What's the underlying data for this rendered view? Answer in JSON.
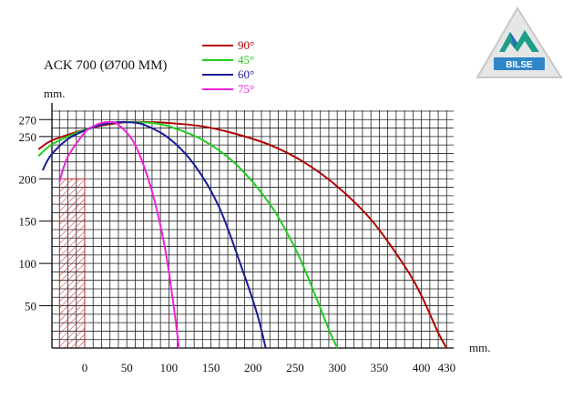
{
  "chart_data": {
    "type": "line",
    "title": "ACK 700 (Ø700 MM)",
    "ylabel": "mm.",
    "xlabel": "mm.",
    "x_ticks": [
      0,
      50,
      100,
      150,
      200,
      250,
      300,
      350,
      400,
      430
    ],
    "y_ticks": [
      50,
      100,
      150,
      200,
      250,
      270
    ],
    "xlim": [
      -40,
      440
    ],
    "ylim": [
      0,
      280
    ],
    "grid": true,
    "legend_position": "top-center",
    "obstacle": {
      "x": [
        -30,
        0
      ],
      "y": [
        0,
        200
      ]
    },
    "series": [
      {
        "name": "90°",
        "color": "#b00000",
        "x": [
          -55,
          -40,
          -20,
          0,
          20,
          50,
          80,
          100,
          140,
          180,
          220,
          260,
          300,
          340,
          380,
          400,
          420,
          430
        ],
        "y": [
          235,
          245,
          252,
          258,
          263,
          267,
          267,
          266,
          262,
          253,
          240,
          220,
          191,
          152,
          97,
          62,
          18,
          0
        ]
      },
      {
        "name": "45°",
        "color": "#22cc22",
        "x": [
          -55,
          -40,
          -20,
          0,
          20,
          40,
          60,
          80,
          100,
          140,
          180,
          220,
          250,
          270,
          290,
          300
        ],
        "y": [
          227,
          240,
          250,
          258,
          264,
          267,
          267,
          266,
          262,
          246,
          217,
          170,
          118,
          72,
          22,
          0
        ]
      },
      {
        "name": "60°",
        "color": "#1a1a9a",
        "x": [
          -50,
          -40,
          -20,
          0,
          20,
          40,
          50,
          70,
          100,
          130,
          160,
          190,
          205,
          215
        ],
        "y": [
          210,
          228,
          247,
          257,
          264,
          267,
          267,
          264,
          248,
          217,
          166,
          85,
          40,
          0
        ]
      },
      {
        "name": "75°",
        "color": "#ee22dd",
        "x": [
          -30,
          -20,
          0,
          10,
          20,
          30,
          40,
          60,
          80,
          95,
          105,
          112
        ],
        "y": [
          197,
          226,
          255,
          262,
          266,
          267,
          264,
          240,
          185,
          120,
          55,
          0
        ]
      }
    ]
  },
  "logo": {
    "text": "BILSE"
  }
}
